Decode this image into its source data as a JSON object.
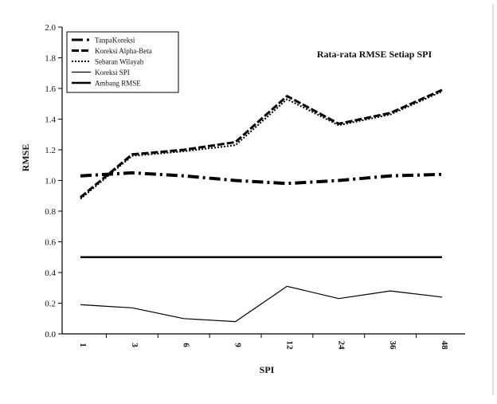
{
  "chart_data": {
    "type": "line",
    "title": "Rata-rata RMSE Setiap SPI",
    "xlabel": "SPI",
    "ylabel": "RMSE",
    "categories": [
      "1",
      "3",
      "6",
      "9",
      "12",
      "24",
      "36",
      "48"
    ],
    "ylim": [
      0.0,
      2.0
    ],
    "yticks": [
      "0.0",
      "0.2",
      "0.4",
      "0.6",
      "0.8",
      "1.0",
      "1.2",
      "1.4",
      "1.6",
      "1.8",
      "2.0"
    ],
    "grid": false,
    "legend_position": "top-left",
    "series": [
      {
        "name": "TanpaKoreksi",
        "values": [
          1.03,
          1.05,
          1.03,
          1.0,
          0.98,
          1.0,
          1.03,
          1.04
        ],
        "color": "#000000",
        "style": "dashdot"
      },
      {
        "name": "Koreksi Alpha-Beta",
        "values": [
          0.89,
          1.17,
          1.2,
          1.25,
          1.55,
          1.37,
          1.44,
          1.59
        ],
        "color": "#000000",
        "style": "dashed"
      },
      {
        "name": "Sebaran Wilayah",
        "values": [
          0.88,
          1.16,
          1.19,
          1.23,
          1.53,
          1.36,
          1.43,
          1.58
        ],
        "color": "#000000",
        "style": "dotted"
      },
      {
        "name": "Koreksi SPI",
        "values": [
          0.19,
          0.17,
          0.1,
          0.08,
          0.31,
          0.23,
          0.28,
          0.24
        ],
        "color": "#000000",
        "style": "solid-thin"
      },
      {
        "name": "Ambang RMSE",
        "values": [
          0.5,
          0.5,
          0.5,
          0.5,
          0.5,
          0.5,
          0.5,
          0.5
        ],
        "color": "#000000",
        "style": "solid-thick"
      }
    ]
  }
}
